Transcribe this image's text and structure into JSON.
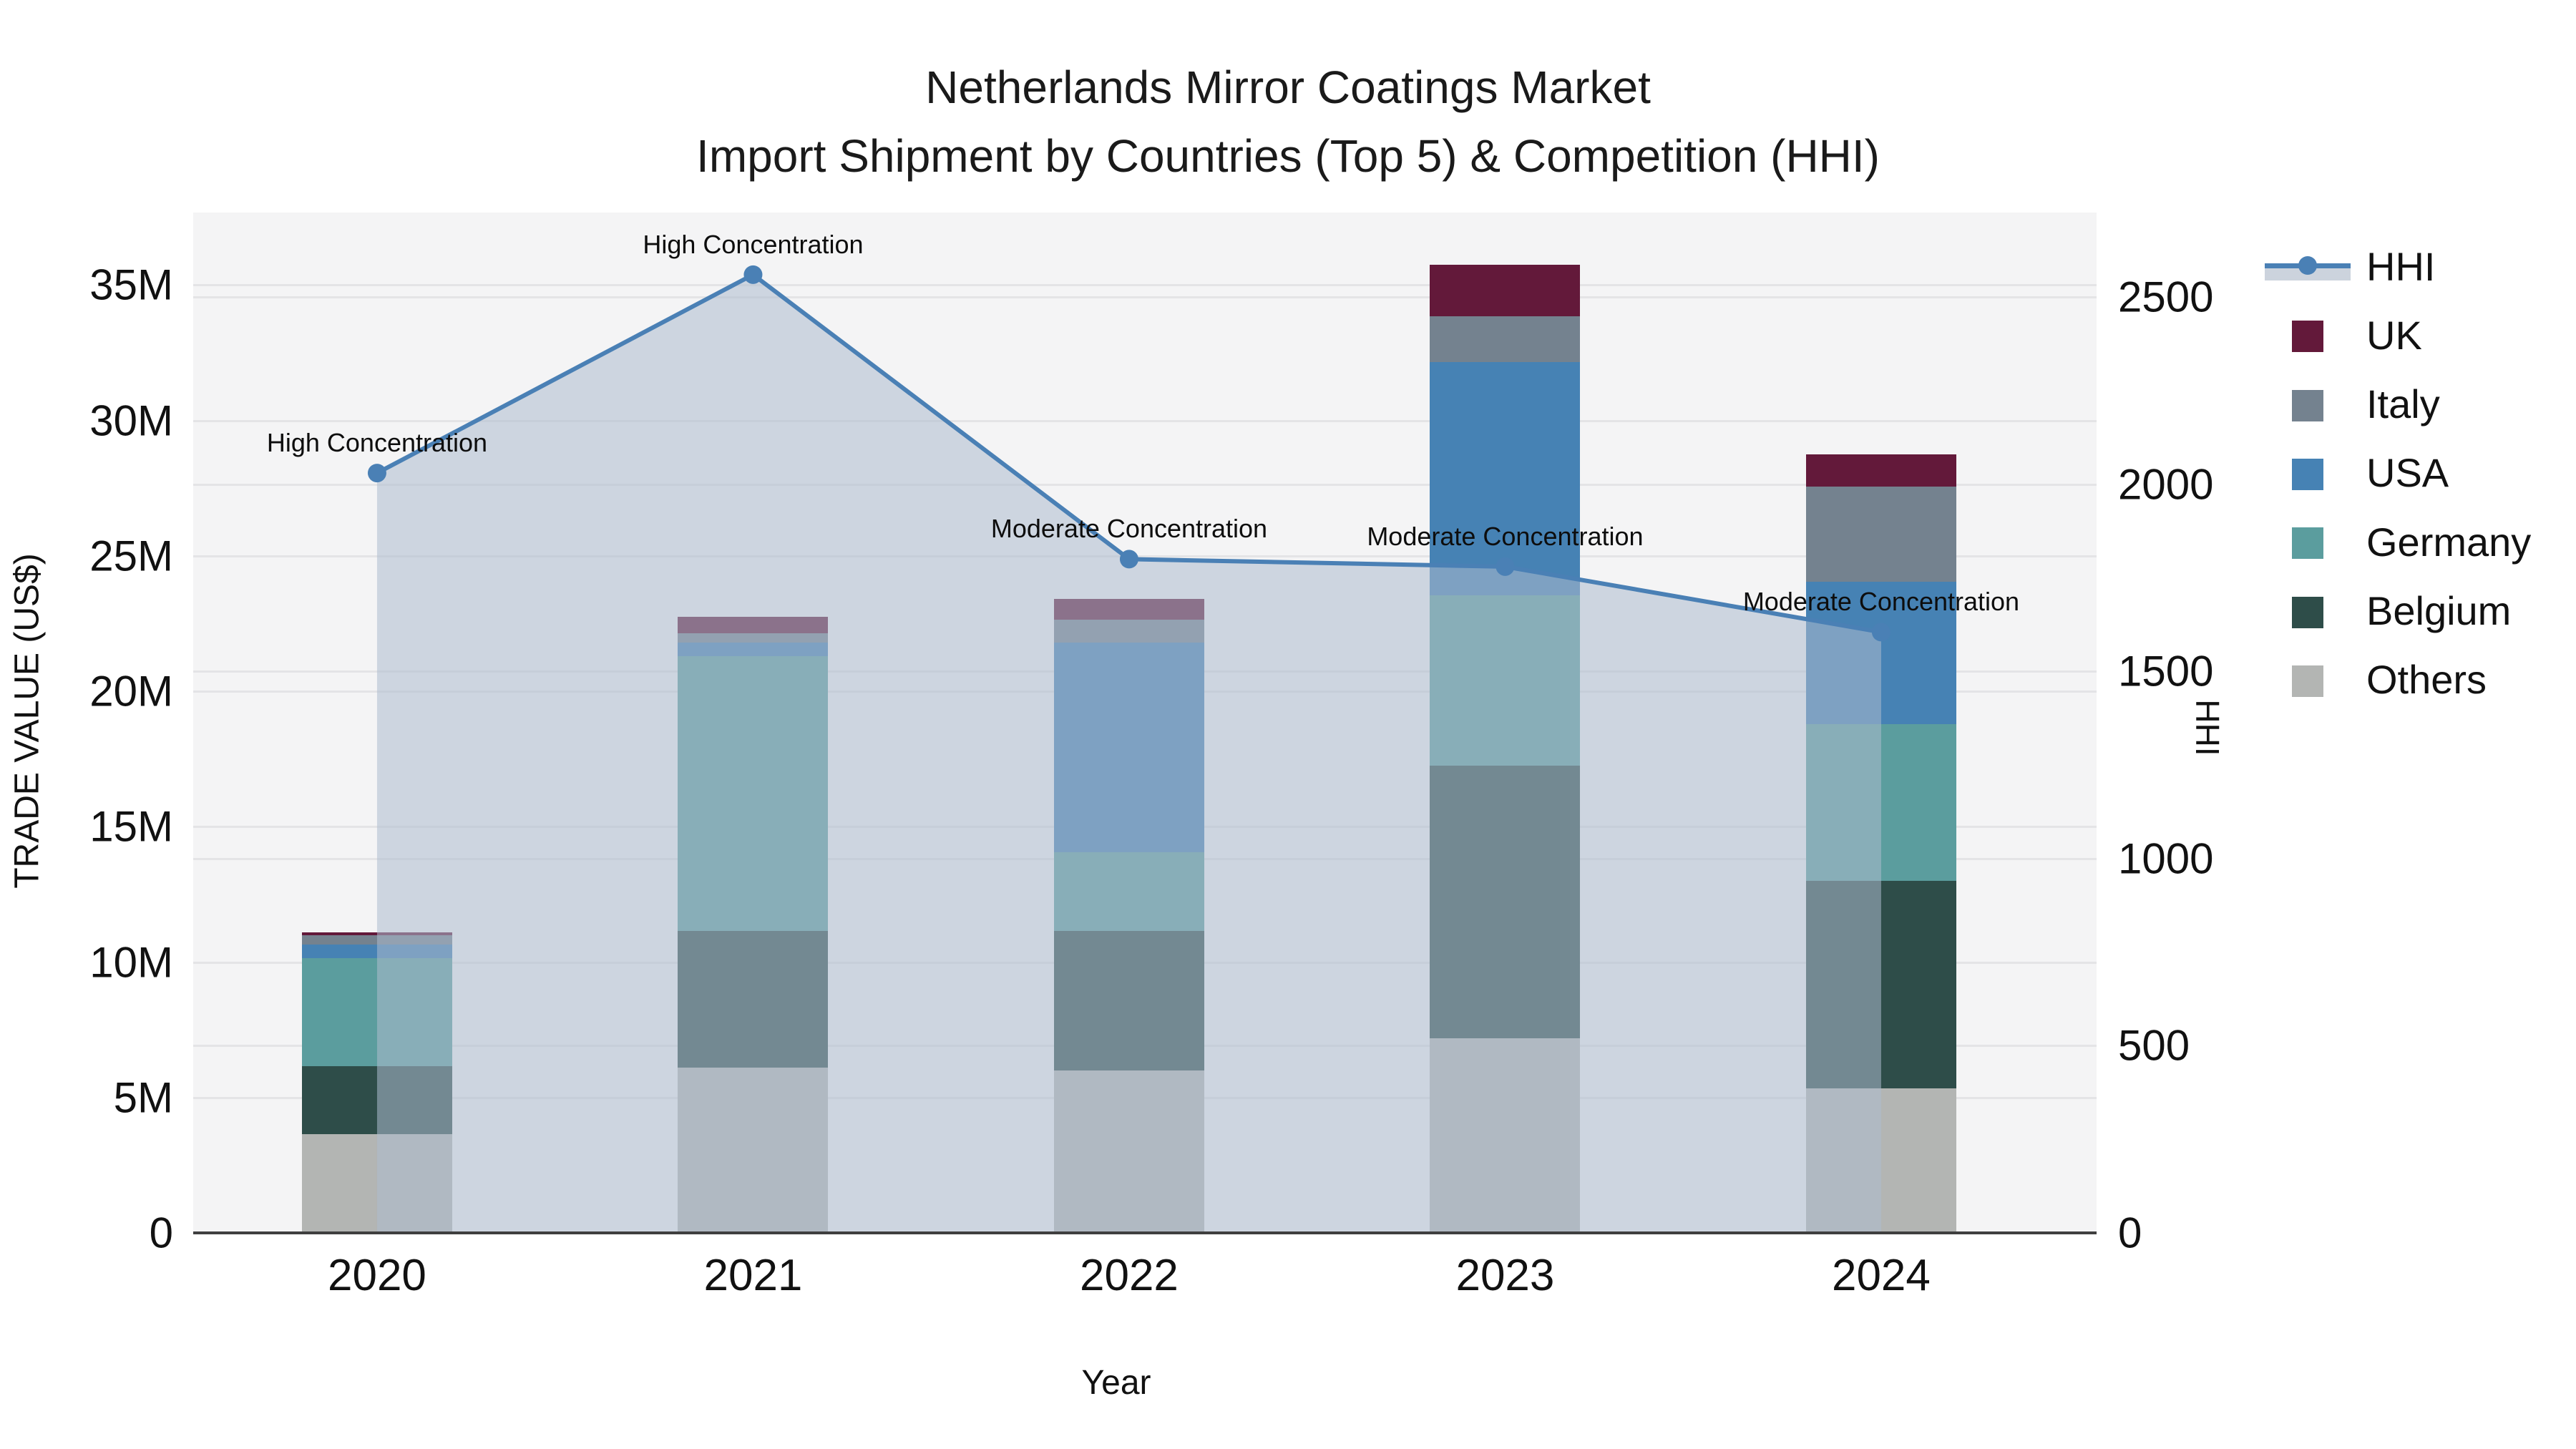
{
  "figure": {
    "title_line1": "Netherlands Mirror Coatings Market",
    "title_line2": "Import Shipment by Countries (Top 5) & Competition (HHI)"
  },
  "axes": {
    "left": {
      "title": "TRADE VALUE (US$)",
      "tick_labels": [
        "0",
        "5M",
        "10M",
        "15M",
        "20M",
        "25M",
        "30M",
        "35M"
      ],
      "tick_values": [
        0,
        5,
        10,
        15,
        20,
        25,
        30,
        35
      ],
      "max": 37.68
    },
    "right": {
      "title": "HHI",
      "tick_labels": [
        "0",
        "500",
        "1000",
        "1500",
        "2000",
        "2500"
      ],
      "tick_values": [
        0,
        500,
        1000,
        1500,
        2000,
        2500
      ],
      "max": 2726
    },
    "x": {
      "title": "Year",
      "tick_labels": [
        "2020",
        "2021",
        "2022",
        "2023",
        "2024"
      ]
    }
  },
  "legend": {
    "items": [
      {
        "label": "HHI",
        "type": "line+area",
        "color": "#4a80b5"
      },
      {
        "label": "UK",
        "type": "swatch",
        "color": "#63193a"
      },
      {
        "label": "Italy",
        "type": "swatch",
        "color": "#74828f"
      },
      {
        "label": "USA",
        "type": "swatch",
        "color": "#4682b4"
      },
      {
        "label": "Germany",
        "type": "swatch",
        "color": "#5b9d9e"
      },
      {
        "label": "Belgium",
        "type": "swatch",
        "color": "#2e4d49"
      },
      {
        "label": "Others",
        "type": "swatch",
        "color": "#b3b5b3"
      }
    ]
  },
  "chart_data": {
    "type": "combo: stacked bar (left axis, trade value M US$) + line with area fill (right axis, HHI)",
    "title": "Netherlands Mirror Coatings Market — Import Shipment by Countries (Top 5) & Competition (HHI)",
    "categories": [
      "2020",
      "2021",
      "2022",
      "2023",
      "2024"
    ],
    "xlabel": "Year",
    "ylabel_left": "TRADE VALUE (US$)",
    "ylabel_right": "HHI",
    "ylim_left_millions": [
      0,
      37.68
    ],
    "ylim_right_hhi": [
      0,
      2726
    ],
    "grid": "both axes, horizontal lines at 5M and 500 HHI steps",
    "legend_position": "right, outside plot",
    "bar_stack_order_bottom_to_top": [
      "Others",
      "Belgium",
      "Germany",
      "USA",
      "Italy",
      "UK"
    ],
    "bar_series": [
      {
        "name": "Others",
        "color": "#b3b5b3",
        "values_millions": [
          3.65,
          6.1,
          6.0,
          7.2,
          5.35
        ]
      },
      {
        "name": "Belgium",
        "color": "#2e4d49",
        "values_millions": [
          2.5,
          5.05,
          5.15,
          10.05,
          7.65
        ]
      },
      {
        "name": "Germany",
        "color": "#5b9d9e",
        "values_millions": [
          4.0,
          10.15,
          2.9,
          6.3,
          5.8
        ]
      },
      {
        "name": "USA",
        "color": "#4682b4",
        "values_millions": [
          0.5,
          0.5,
          7.75,
          8.6,
          5.25
        ]
      },
      {
        "name": "Italy",
        "color": "#74828f",
        "values_millions": [
          0.35,
          0.35,
          0.85,
          1.7,
          3.5
        ]
      },
      {
        "name": "UK",
        "color": "#63193a",
        "values_millions": [
          0.1,
          0.6,
          0.75,
          1.9,
          1.2
        ]
      }
    ],
    "bar_totals_millions": [
      11.1,
      22.75,
      23.4,
      35.75,
      28.75
    ],
    "line_series": {
      "name": "HHI",
      "color": "#4a80b5",
      "area_fill": "rgba(173,187,205,0.55)",
      "values": [
        2030,
        2560,
        1800,
        1780,
        1605
      ]
    },
    "annotations": [
      {
        "x": "2020",
        "text": "High Concentration"
      },
      {
        "x": "2021",
        "text": "High Concentration"
      },
      {
        "x": "2022",
        "text": "Moderate Concentration"
      },
      {
        "x": "2023",
        "text": "Moderate Concentration"
      },
      {
        "x": "2024",
        "text": "Moderate Concentration"
      }
    ]
  }
}
